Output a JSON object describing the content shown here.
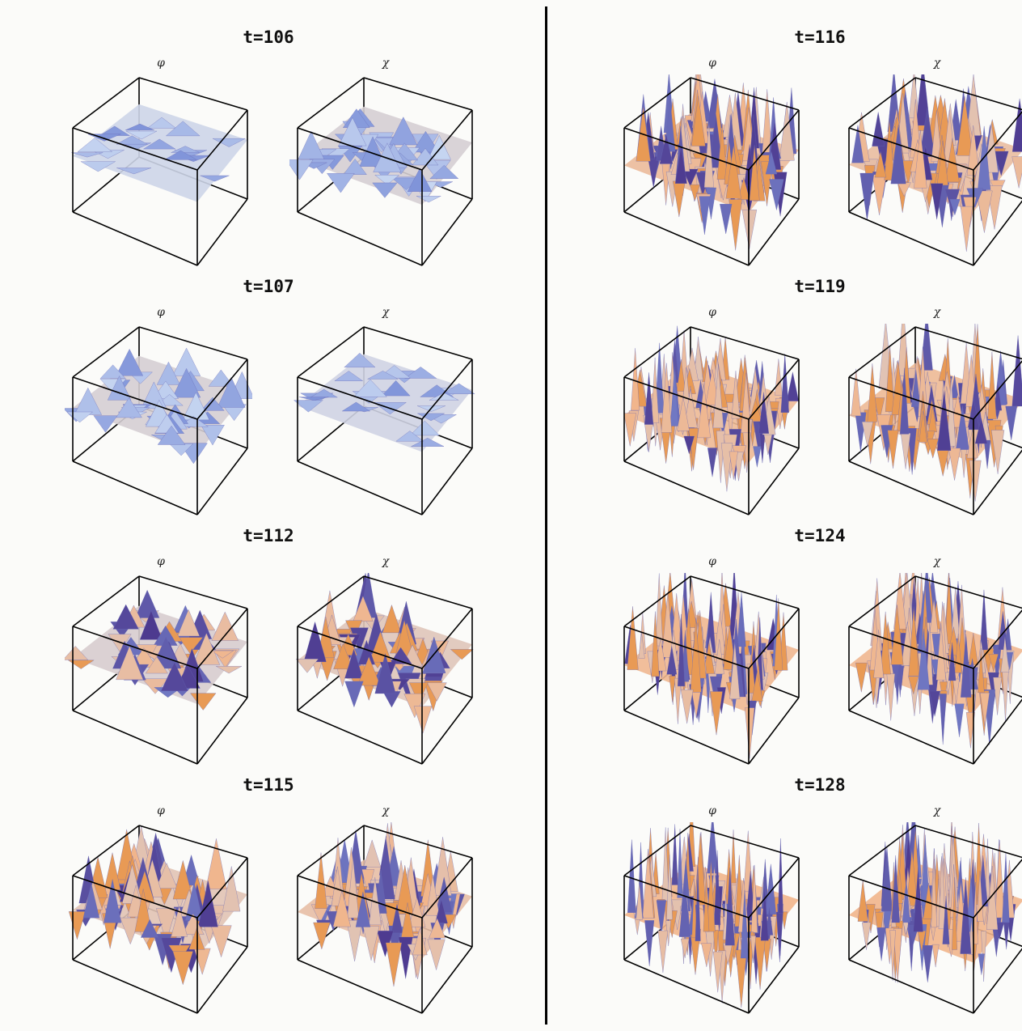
{
  "colors": {
    "background": "#fbfbf9",
    "box_edge": "#000000",
    "surface_light": "#c9d8f2",
    "surface_blue": "#7f93d9",
    "surface_violet": "#4d3a8f",
    "surface_peach": "#f1b58b",
    "surface_orange": "#e89a55"
  },
  "panels": [
    {
      "time_label": "t=106",
      "phi_label": "φ",
      "chi_label": "χ",
      "phi_roughness": 0.1,
      "chi_roughness": 0.3
    },
    {
      "time_label": "t=107",
      "phi_label": "φ",
      "chi_label": "χ",
      "phi_roughness": 0.3,
      "chi_roughness": 0.15
    },
    {
      "time_label": "t=112",
      "phi_label": "φ",
      "chi_label": "χ",
      "phi_roughness": 0.35,
      "chi_roughness": 0.55
    },
    {
      "time_label": "t=115",
      "phi_label": "φ",
      "chi_label": "χ",
      "phi_roughness": 0.6,
      "chi_roughness": 0.75
    },
    {
      "time_label": "t=116",
      "phi_label": "φ",
      "chi_label": "χ",
      "phi_roughness": 0.85,
      "chi_roughness": 0.8
    },
    {
      "time_label": "t=119",
      "phi_label": "φ",
      "chi_label": "χ",
      "phi_roughness": 0.9,
      "chi_roughness": 0.9
    },
    {
      "time_label": "t=124",
      "phi_label": "φ",
      "chi_label": "χ",
      "phi_roughness": 0.95,
      "chi_roughness": 0.95
    },
    {
      "time_label": "t=128",
      "phi_label": "φ",
      "chi_label": "χ",
      "phi_roughness": 1.0,
      "chi_roughness": 1.0
    }
  ]
}
